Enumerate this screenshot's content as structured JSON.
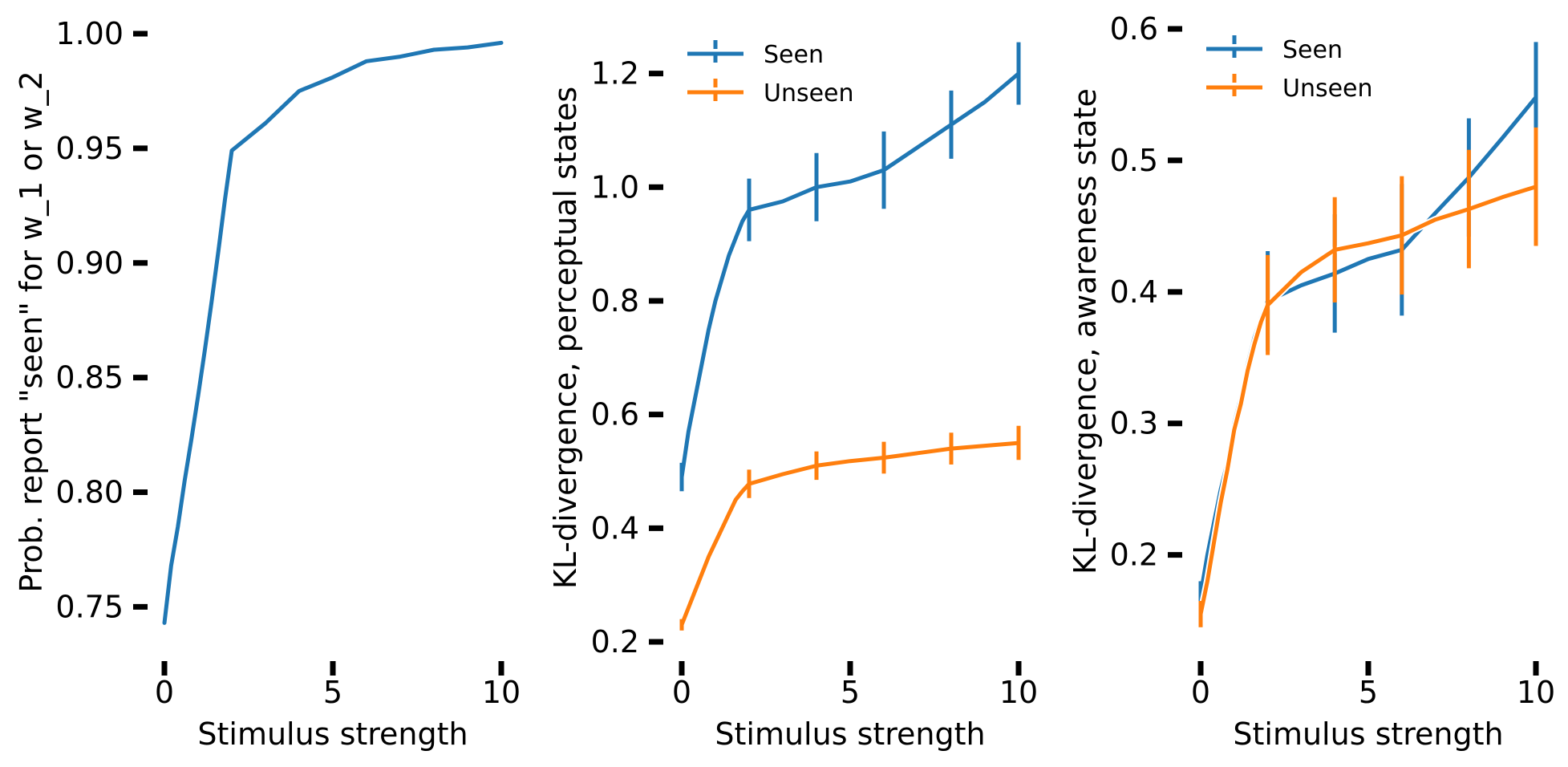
{
  "chart_data": [
    {
      "type": "line",
      "xlabel": "Stimulus strength",
      "ylabel": "Prob. report \"seen\" for w_1 or w_2",
      "xlim": [
        0,
        10
      ],
      "ylim": [
        0.74,
        1.0
      ],
      "xticks": [
        0,
        5,
        10
      ],
      "xtick_labels": [
        "0",
        "5",
        "10"
      ],
      "yticks": [
        0.75,
        0.8,
        0.85,
        0.9,
        0.95,
        1.0
      ],
      "ytick_labels": [
        "0.75",
        "0.80",
        "0.85",
        "0.90",
        "0.95",
        "1.00"
      ],
      "grid": false,
      "series": [
        {
          "color": "#1f77b4",
          "x": [
            0,
            0.2,
            0.4,
            0.6,
            0.8,
            1.0,
            1.2,
            1.4,
            1.6,
            1.8,
            2.0,
            3.0,
            4.0,
            5.0,
            6.0,
            7.0,
            8.0,
            9.0,
            10.0
          ],
          "y": [
            0.743,
            0.768,
            0.785,
            0.805,
            0.823,
            0.842,
            0.862,
            0.883,
            0.905,
            0.928,
            0.949,
            0.961,
            0.975,
            0.981,
            0.988,
            0.99,
            0.993,
            0.994,
            0.996
          ]
        }
      ]
    },
    {
      "type": "line",
      "xlabel": "Stimulus strength",
      "ylabel": "KL-divergence, perceptual states",
      "xlim": [
        0,
        10
      ],
      "ylim": [
        0.2,
        1.27
      ],
      "xticks": [
        0,
        5,
        10
      ],
      "xtick_labels": [
        "0",
        "5",
        "10"
      ],
      "yticks": [
        0.2,
        0.4,
        0.6,
        0.8,
        1.0,
        1.2
      ],
      "ytick_labels": [
        "0.2",
        "0.4",
        "0.6",
        "0.8",
        "1.0",
        "1.2"
      ],
      "grid": false,
      "legend": "top-left",
      "series": [
        {
          "name": "Seen",
          "color": "#1f77b4",
          "x": [
            0,
            0.2,
            0.4,
            0.6,
            0.8,
            1.0,
            1.2,
            1.4,
            1.6,
            1.8,
            2.0,
            3.0,
            4.0,
            5.0,
            6.0,
            7.0,
            8.0,
            9.0,
            10.0
          ],
          "y": [
            0.49,
            0.57,
            0.63,
            0.69,
            0.75,
            0.8,
            0.84,
            0.88,
            0.91,
            0.94,
            0.96,
            0.975,
            1.0,
            1.01,
            1.03,
            1.07,
            1.11,
            1.15,
            1.2
          ],
          "errorbars": {
            "x": [
              0,
              2,
              4,
              6,
              8,
              10
            ],
            "y": [
              0.49,
              0.96,
              1.0,
              1.03,
              1.11,
              1.2
            ],
            "err": [
              0.025,
              0.055,
              0.06,
              0.068,
              0.06,
              0.055
            ]
          }
        },
        {
          "name": "Unseen",
          "color": "#ff7f0e",
          "x": [
            0,
            0.2,
            0.4,
            0.6,
            0.8,
            1.0,
            1.2,
            1.4,
            1.6,
            1.8,
            2.0,
            3.0,
            4.0,
            5.0,
            6.0,
            7.0,
            8.0,
            9.0,
            10.0
          ],
          "y": [
            0.23,
            0.26,
            0.29,
            0.32,
            0.35,
            0.375,
            0.4,
            0.425,
            0.45,
            0.465,
            0.478,
            0.495,
            0.51,
            0.518,
            0.524,
            0.532,
            0.54,
            0.545,
            0.55
          ],
          "errorbars": {
            "x": [
              0,
              2,
              4,
              6,
              8,
              10
            ],
            "y": [
              0.23,
              0.478,
              0.51,
              0.524,
              0.54,
              0.55
            ],
            "err": [
              0.01,
              0.025,
              0.025,
              0.028,
              0.028,
              0.03
            ]
          }
        }
      ]
    },
    {
      "type": "line",
      "xlabel": "Stimulus strength",
      "ylabel": "KL-divergence, awareness state",
      "xlim": [
        0,
        10
      ],
      "ylim": [
        0.14,
        0.6
      ],
      "xticks": [
        0,
        5,
        10
      ],
      "xtick_labels": [
        "0",
        "5",
        "10"
      ],
      "yticks": [
        0.2,
        0.3,
        0.4,
        0.5,
        0.6
      ],
      "ytick_labels": [
        "0.2",
        "0.3",
        "0.4",
        "0.5",
        "0.6"
      ],
      "grid": false,
      "legend": "top-left",
      "series": [
        {
          "name": "Seen",
          "color": "#1f77b4",
          "x": [
            0,
            0.2,
            0.4,
            0.6,
            0.8,
            1.0,
            1.2,
            1.4,
            1.6,
            1.8,
            2.0,
            3.0,
            4.0,
            5.0,
            6.0,
            7.0,
            8.0,
            9.0,
            10.0
          ],
          "y": [
            0.17,
            0.2,
            0.225,
            0.25,
            0.27,
            0.3,
            0.32,
            0.345,
            0.365,
            0.38,
            0.393,
            0.405,
            0.414,
            0.425,
            0.432,
            0.46,
            0.487,
            0.517,
            0.548
          ],
          "errorbars": {
            "x": [
              0,
              2,
              4,
              6,
              8,
              10
            ],
            "y": [
              0.17,
              0.393,
              0.414,
              0.432,
              0.487,
              0.548
            ],
            "err": [
              0.01,
              0.038,
              0.045,
              0.05,
              0.045,
              0.042
            ]
          }
        },
        {
          "name": "Unseen",
          "color": "#ff7f0e",
          "x": [
            0,
            0.2,
            0.4,
            0.6,
            0.8,
            1.0,
            1.2,
            1.4,
            1.6,
            1.8,
            2.0,
            3.0,
            4.0,
            5.0,
            6.0,
            7.0,
            8.0,
            9.0,
            10.0
          ],
          "y": [
            0.155,
            0.18,
            0.21,
            0.24,
            0.265,
            0.295,
            0.315,
            0.34,
            0.36,
            0.377,
            0.39,
            0.415,
            0.432,
            0.437,
            0.443,
            0.455,
            0.463,
            0.472,
            0.48
          ],
          "errorbars": {
            "x": [
              0,
              2,
              4,
              6,
              8,
              10
            ],
            "y": [
              0.155,
              0.39,
              0.432,
              0.443,
              0.463,
              0.48
            ],
            "err": [
              0.01,
              0.038,
              0.04,
              0.045,
              0.045,
              0.045
            ]
          }
        }
      ]
    }
  ]
}
